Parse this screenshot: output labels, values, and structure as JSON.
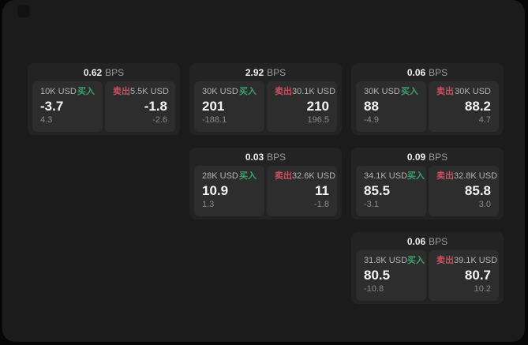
{
  "labels": {
    "bps_unit": "BPS",
    "buy": "买入",
    "sell": "卖出"
  },
  "colors": {
    "buy_green": "#3aa06b",
    "sell_red": "#c94f5e",
    "window_bg": "#1b1b1b",
    "card_bg": "#232323",
    "panel_bg": "#2d2d2d"
  },
  "cards": [
    {
      "bps": "0.62",
      "buy": {
        "amount": "10K USD",
        "price": "-3.7",
        "sub": "4.3"
      },
      "sell": {
        "amount": "5.5K USD",
        "price": "-1.8",
        "sub": "-2.6"
      }
    },
    {
      "bps": "2.92",
      "buy": {
        "amount": "30K USD",
        "price": "201",
        "sub": "-188.1"
      },
      "sell": {
        "amount": "30.1K USD",
        "price": "210",
        "sub": "196.5"
      }
    },
    {
      "bps": "0.06",
      "buy": {
        "amount": "30K USD",
        "price": "88",
        "sub": "-4.9"
      },
      "sell": {
        "amount": "30K USD",
        "price": "88.2",
        "sub": "4.7"
      }
    },
    {
      "bps": "0.03",
      "buy": {
        "amount": "28K USD",
        "price": "10.9",
        "sub": "1.3"
      },
      "sell": {
        "amount": "32.6K USD",
        "price": "11",
        "sub": "-1.8"
      }
    },
    {
      "bps": "0.09",
      "buy": {
        "amount": "34.1K USD",
        "price": "85.5",
        "sub": "-3.1"
      },
      "sell": {
        "amount": "32.8K USD",
        "price": "85.8",
        "sub": "3.0"
      }
    },
    {
      "bps": "0.06",
      "buy": {
        "amount": "31.8K USD",
        "price": "80.5",
        "sub": "-10.8"
      },
      "sell": {
        "amount": "39.1K USD",
        "price": "80.7",
        "sub": "10.2"
      }
    }
  ]
}
